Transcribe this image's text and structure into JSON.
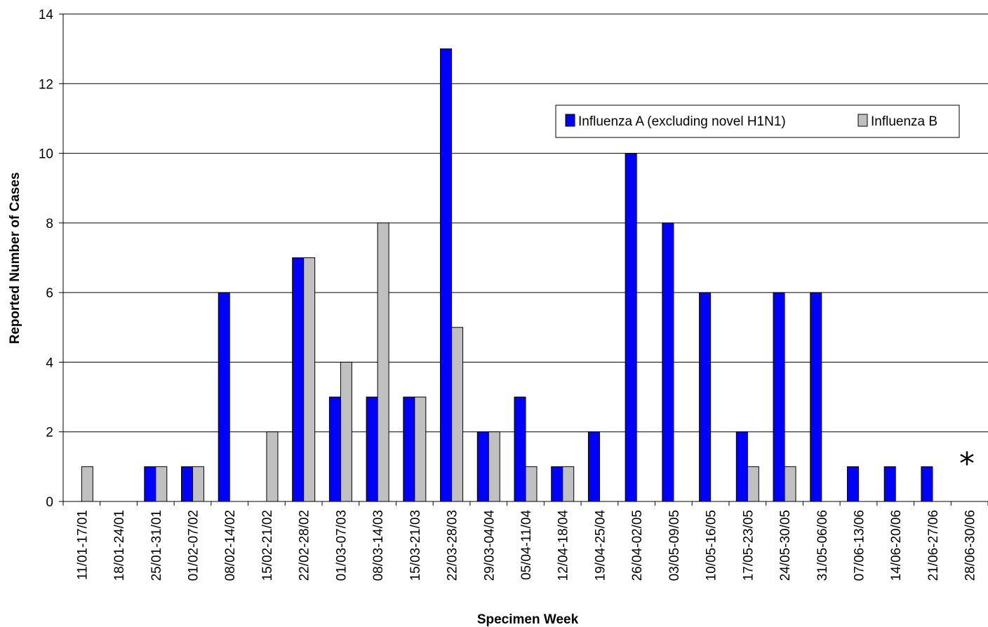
{
  "chart_data": {
    "type": "bar",
    "xlabel": "Specimen Week",
    "ylabel": "Reported Number of Cases",
    "ylim": [
      0,
      14
    ],
    "yticks": [
      "0",
      "2",
      "4",
      "6",
      "8",
      "10",
      "12",
      "14"
    ],
    "grid": "horizontal",
    "legend_placement": "top-right",
    "categories": [
      "11/01-17/01",
      "18/01-24/01",
      "25/01-31/01",
      "01/02-07/02",
      "08/02-14/02",
      "15/02-21/02",
      "22/02-28/02",
      "01/03-07/03",
      "08/03-14/03",
      "15/03-21/03",
      "22/03-28/03",
      "29/03-04/04",
      "05/04-11/04",
      "12/04-18/04",
      "19/04-25/04",
      "26/04-02/05",
      "03/05-09/05",
      "10/05-16/05",
      "17/05-23/05",
      "24/05-30/05",
      "31/05-06/06",
      "07/06-13/06",
      "14/06-20/06",
      "21/06-27/06",
      "28/06-30/06"
    ],
    "series": [
      {
        "name": "Influenza A (excluding novel H1N1)",
        "color": "#0000ff",
        "values": [
          0,
          0,
          1,
          1,
          6,
          0,
          7,
          3,
          3,
          3,
          13,
          2,
          3,
          1,
          2,
          10,
          8,
          6,
          2,
          6,
          6,
          1,
          1,
          1,
          0
        ]
      },
      {
        "name": "Influenza B",
        "color": "#c0c0c0",
        "values": [
          1,
          0,
          1,
          1,
          0,
          2,
          7,
          4,
          8,
          3,
          5,
          2,
          1,
          1,
          0,
          0,
          0,
          0,
          1,
          1,
          0,
          0,
          0,
          0,
          0
        ]
      }
    ],
    "annotations": [
      {
        "text": "*",
        "category": "28/06-30/06"
      }
    ]
  }
}
